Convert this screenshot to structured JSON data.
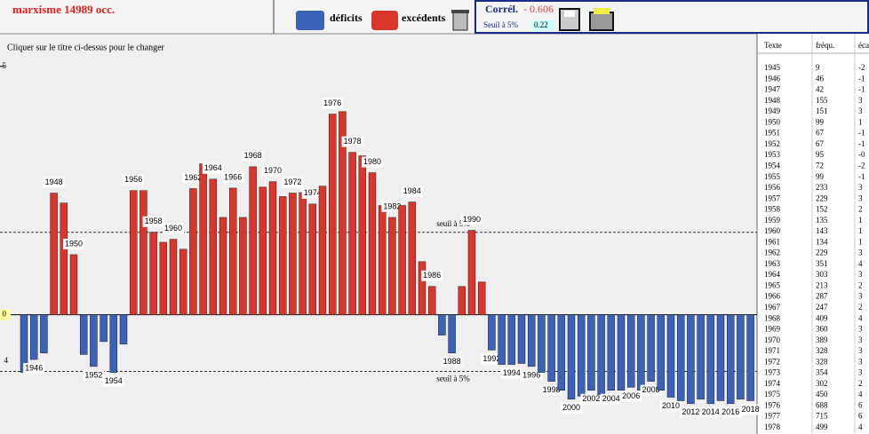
{
  "header": {
    "title": "marxisme  14989 occ.",
    "legend": [
      {
        "name": "déficits",
        "color": "#3b62b6"
      },
      {
        "name": "excédents",
        "color": "#d9362b"
      }
    ],
    "correl_label": "Corrél.",
    "correl": {
      "value": -0.606,
      "label": "- 0.606"
    },
    "seuil_label": "Seuil à 5%",
    "seuil": 0.22
  },
  "hint": "Cliquer sur le titre ci-dessus pour le changer",
  "chart_data": {
    "type": "bar",
    "categories": [
      null,
      "1946",
      null,
      "1948",
      null,
      "1950",
      null,
      "1952",
      null,
      "1954",
      null,
      "1956",
      null,
      "1958",
      null,
      "1960",
      null,
      "1962",
      null,
      "1964",
      null,
      "1966",
      null,
      "1968",
      null,
      "1970",
      null,
      "1972",
      null,
      "1974",
      null,
      "1976",
      null,
      "1978",
      null,
      "1980",
      null,
      "1982",
      null,
      "1984",
      null,
      "1986",
      null,
      "1988",
      null,
      "1990",
      null,
      "1992",
      null,
      "1994",
      null,
      "1996",
      null,
      "1998",
      null,
      "2000",
      null,
      "2002",
      null,
      "2004",
      null,
      "2006",
      null,
      "2008",
      null,
      "2010",
      null,
      "2012",
      null,
      "2014",
      null,
      "2016",
      null,
      "2018"
    ],
    "values": [
      -1.16,
      -0.9,
      -0.77,
      2.45,
      2.25,
      1.21,
      -0.8,
      -1.04,
      -0.54,
      -1.16,
      -0.59,
      2.5,
      2.5,
      1.66,
      1.46,
      1.52,
      1.32,
      2.54,
      3.04,
      2.73,
      1.96,
      2.55,
      1.96,
      2.98,
      2.57,
      2.68,
      2.38,
      2.45,
      2.46,
      2.23,
      2.59,
      4.04,
      4.09,
      3.27,
      3.2,
      2.86,
      2.2,
      1.96,
      2.2,
      2.27,
      1.07,
      0.57,
      -0.41,
      -0.77,
      0.57,
      1.7,
      0.66,
      -0.71,
      -1.0,
      -1.0,
      -0.98,
      -1.04,
      -1.16,
      -1.34,
      -1.52,
      -1.7,
      -1.64,
      -1.52,
      -1.61,
      -1.52,
      -1.52,
      -1.46,
      -1.52,
      -1.34,
      -1.52,
      -1.66,
      -1.73,
      -1.79,
      -1.7,
      -1.79,
      -1.73,
      -1.79,
      -1.7,
      -1.73
    ],
    "ylim": [
      -2.4,
      5.3
    ],
    "yticks": [
      0,
      5
    ],
    "thresholds": [
      {
        "value": 1.66,
        "label": "seuil à 5%"
      },
      {
        "value": -1.14,
        "label": "seuil à 5%"
      }
    ],
    "annotations": [
      "4"
    ]
  },
  "table": {
    "header": [
      "Texte",
      "fréqu.",
      "éca"
    ],
    "rows": [
      [
        "1945",
        "9",
        "-2"
      ],
      [
        "1946",
        "46",
        "-1"
      ],
      [
        "1947",
        "42",
        "-1"
      ],
      [
        "1948",
        "155",
        "3"
      ],
      [
        "1949",
        "151",
        "3"
      ],
      [
        "1950",
        "99",
        "1"
      ],
      [
        "1951",
        "67",
        "-1"
      ],
      [
        "1952",
        "67",
        "-1"
      ],
      [
        "1953",
        "95",
        "-0"
      ],
      [
        "1954",
        "72",
        "-2"
      ],
      [
        "1955",
        "99",
        "-1"
      ],
      [
        "1956",
        "233",
        "3"
      ],
      [
        "1957",
        "229",
        "3"
      ],
      [
        "1958",
        "152",
        "2"
      ],
      [
        "1959",
        "135",
        "1"
      ],
      [
        "1960",
        "143",
        "1"
      ],
      [
        "1961",
        "134",
        "1"
      ],
      [
        "1962",
        "229",
        "3"
      ],
      [
        "1963",
        "351",
        "4"
      ],
      [
        "1964",
        "303",
        "3"
      ],
      [
        "1965",
        "213",
        "2"
      ],
      [
        "1966",
        "287",
        "3"
      ],
      [
        "1967",
        "247",
        "2"
      ],
      [
        "1968",
        "409",
        "4"
      ],
      [
        "1969",
        "360",
        "3"
      ],
      [
        "1970",
        "389",
        "3"
      ],
      [
        "1971",
        "328",
        "3"
      ],
      [
        "1972",
        "328",
        "3"
      ],
      [
        "1973",
        "354",
        "3"
      ],
      [
        "1974",
        "302",
        "2"
      ],
      [
        "1975",
        "450",
        "4"
      ],
      [
        "1976",
        "688",
        "6"
      ],
      [
        "1977",
        "715",
        "6"
      ],
      [
        "1978",
        "499",
        "4"
      ]
    ]
  }
}
